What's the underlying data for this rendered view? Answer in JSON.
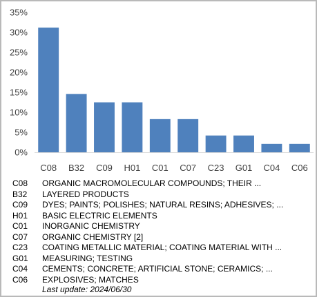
{
  "chart_data": {
    "type": "bar",
    "categories": [
      "C08",
      "B32",
      "C09",
      "H01",
      "C01",
      "C07",
      "C23",
      "G01",
      "C04",
      "C06"
    ],
    "values": [
      31.2,
      14.6,
      12.5,
      12.5,
      8.3,
      8.3,
      4.2,
      4.2,
      2.1,
      2.1
    ],
    "yticks": [
      "0%",
      "5%",
      "10%",
      "15%",
      "20%",
      "25%",
      "30%",
      "35%"
    ],
    "ylim": [
      0,
      35
    ],
    "grid": false,
    "bar_color": "#4f81bd"
  },
  "legend": [
    {
      "code": "C08",
      "description": "ORGANIC MACROMOLECULAR COMPOUNDS; THEIR ..."
    },
    {
      "code": "B32",
      "description": "LAYERED PRODUCTS"
    },
    {
      "code": "C09",
      "description": "DYES; PAINTS; POLISHES; NATURAL RESINS; ADHESIVES; ..."
    },
    {
      "code": "H01",
      "description": "BASIC ELECTRIC ELEMENTS"
    },
    {
      "code": "C01",
      "description": "INORGANIC CHEMISTRY"
    },
    {
      "code": "C07",
      "description": "ORGANIC CHEMISTRY [2]"
    },
    {
      "code": "C23",
      "description": "COATING METALLIC MATERIAL; COATING MATERIAL WITH ..."
    },
    {
      "code": "G01",
      "description": "MEASURING; TESTING"
    },
    {
      "code": "C04",
      "description": "CEMENTS; CONCRETE; ARTIFICIAL STONE; CERAMICS; ..."
    },
    {
      "code": "C06",
      "description": "EXPLOSIVES; MATCHES"
    }
  ],
  "footer": {
    "last_update": "Last update:  2024/06/30"
  }
}
